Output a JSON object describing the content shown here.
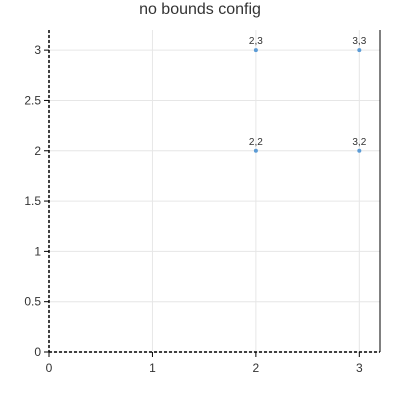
{
  "chart_data": {
    "type": "scatter",
    "title": "no bounds config",
    "xlabel": "",
    "ylabel": "",
    "xlim": [
      0,
      3.2
    ],
    "ylim": [
      0,
      3.2
    ],
    "x_ticks": [
      "0",
      "1",
      "2",
      "3"
    ],
    "y_ticks": [
      "0",
      "0.5",
      "1",
      "1.5",
      "2",
      "2.5",
      "3"
    ],
    "grid": true,
    "series": [
      {
        "color": "#5b9bd5",
        "points": [
          {
            "x": 2,
            "y": 2,
            "label": "2,2"
          },
          {
            "x": 2,
            "y": 3,
            "label": "2,3"
          },
          {
            "x": 3,
            "y": 2,
            "label": "3,2"
          },
          {
            "x": 3,
            "y": 3,
            "label": "3,3"
          }
        ]
      }
    ]
  }
}
